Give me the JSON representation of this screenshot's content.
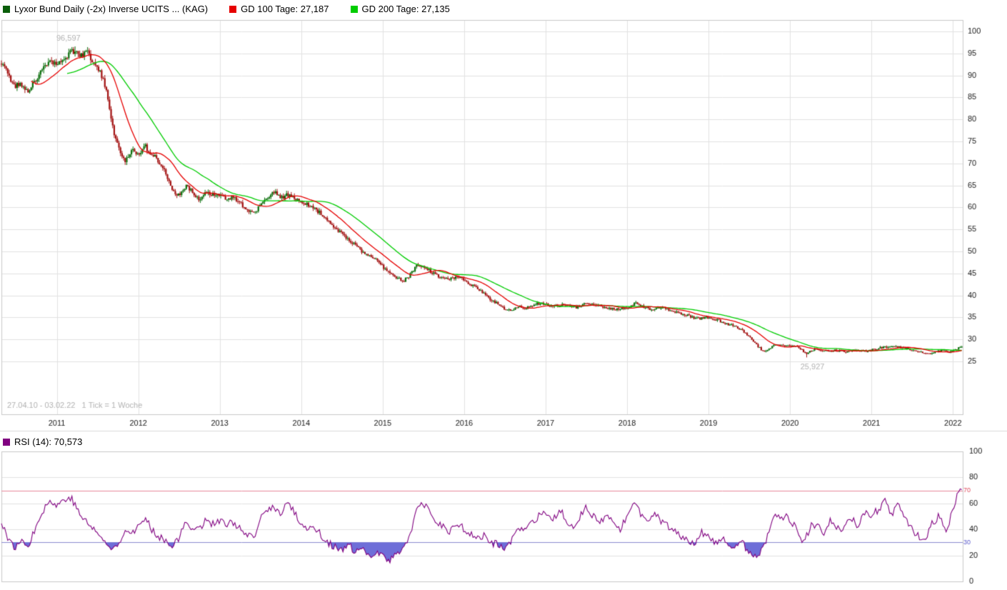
{
  "legend": {
    "title": "Lyxor Bund Daily (-2x) Inverse UCITS ... (KAG)",
    "title_color": "#0b5e0b",
    "gd100_label": "GD 100 Tage: 27,187",
    "gd100_color": "#e60000",
    "gd200_label": "GD 200 Tage: 27,135",
    "gd200_color": "#00cc00"
  },
  "rsi_legend": {
    "label": "RSI (14): 70,573",
    "color": "#800080"
  },
  "footer": {
    "date_range": "27.04.10 - 03.02.22",
    "tick_info": "1 Tick = 1 Woche"
  },
  "annotations": {
    "high_label": "96,597",
    "low_label": "25,927"
  },
  "chart_data": {
    "type": "candlestick",
    "title": "Lyxor Bund Daily (-2x) Inverse UCITS ... (KAG)",
    "x_start": 2010.32,
    "x_end": 2022.12,
    "ylim": [
      13,
      102.6
    ],
    "yticks": [
      25,
      30,
      35,
      40,
      45,
      50,
      55,
      60,
      65,
      70,
      75,
      80,
      85,
      90,
      95,
      100
    ],
    "xticks": [
      2011,
      2012,
      2013,
      2014,
      2015,
      2016,
      2017,
      2018,
      2019,
      2020,
      2021,
      2022
    ],
    "tick_interval": "1 Tick = 1 Woche",
    "high_point": [
      2011.23,
      96.597
    ],
    "low_point": [
      2020.205,
      25.927
    ],
    "up_color": "#0b6e0b",
    "down_color": "#a31111",
    "grid_color": "#e2e2e2",
    "border_color": "#c9c9c9",
    "label_color": "#1a1a1a",
    "muted_color": "#b3b3b3",
    "series": [
      {
        "name": "GD 100 Tage",
        "last_value": 27.187,
        "color": "#e60000",
        "window_weeks": 20
      },
      {
        "name": "GD 200 Tage",
        "last_value": 27.135,
        "color": "#00cc00",
        "window_weeks": 43
      }
    ],
    "close_anchors": [
      [
        2010.33,
        93.0
      ],
      [
        2010.4,
        90.5
      ],
      [
        2010.48,
        87.5
      ],
      [
        2010.55,
        88.5
      ],
      [
        2010.63,
        86.2
      ],
      [
        2010.7,
        88.0
      ],
      [
        2010.78,
        90.0
      ],
      [
        2010.85,
        92.0
      ],
      [
        2010.93,
        93.5
      ],
      [
        2011.0,
        92.5
      ],
      [
        2011.08,
        93.5
      ],
      [
        2011.15,
        95.0
      ],
      [
        2011.23,
        95.8
      ],
      [
        2011.3,
        94.5
      ],
      [
        2011.38,
        95.3
      ],
      [
        2011.45,
        93.0
      ],
      [
        2011.53,
        91.0
      ],
      [
        2011.6,
        87.0
      ],
      [
        2011.65,
        82.0
      ],
      [
        2011.7,
        77.0
      ],
      [
        2011.78,
        72.5
      ],
      [
        2011.85,
        70.5
      ],
      [
        2011.93,
        73.5
      ],
      [
        2012.0,
        72.0
      ],
      [
        2012.08,
        74.0
      ],
      [
        2012.15,
        72.0
      ],
      [
        2012.23,
        71.0
      ],
      [
        2012.3,
        69.0
      ],
      [
        2012.38,
        66.0
      ],
      [
        2012.45,
        62.5
      ],
      [
        2012.53,
        63.5
      ],
      [
        2012.6,
        65.0
      ],
      [
        2012.68,
        63.0
      ],
      [
        2012.75,
        62.0
      ],
      [
        2012.83,
        63.5
      ],
      [
        2012.92,
        63.0
      ],
      [
        2013.0,
        62.5
      ],
      [
        2013.08,
        62.0
      ],
      [
        2013.17,
        62.5
      ],
      [
        2013.25,
        61.0
      ],
      [
        2013.33,
        59.5
      ],
      [
        2013.42,
        58.5
      ],
      [
        2013.5,
        60.5
      ],
      [
        2013.58,
        62.0
      ],
      [
        2013.67,
        63.5
      ],
      [
        2013.75,
        62.0
      ],
      [
        2013.83,
        63.0
      ],
      [
        2013.92,
        62.0
      ],
      [
        2014.0,
        61.5
      ],
      [
        2014.08,
        60.5
      ],
      [
        2014.17,
        59.5
      ],
      [
        2014.25,
        58.5
      ],
      [
        2014.33,
        57.0
      ],
      [
        2014.42,
        55.5
      ],
      [
        2014.5,
        54.0
      ],
      [
        2014.58,
        52.5
      ],
      [
        2014.67,
        51.5
      ],
      [
        2014.75,
        50.0
      ],
      [
        2014.83,
        49.0
      ],
      [
        2014.92,
        48.0
      ],
      [
        2015.0,
        46.5
      ],
      [
        2015.08,
        45.0
      ],
      [
        2015.17,
        44.0
      ],
      [
        2015.25,
        43.2
      ],
      [
        2015.33,
        44.5
      ],
      [
        2015.42,
        47.0
      ],
      [
        2015.5,
        46.5
      ],
      [
        2015.58,
        45.5
      ],
      [
        2015.67,
        44.5
      ],
      [
        2015.75,
        44.0
      ],
      [
        2015.83,
        43.8
      ],
      [
        2015.92,
        44.2
      ],
      [
        2016.0,
        43.5
      ],
      [
        2016.08,
        42.5
      ],
      [
        2016.17,
        41.5
      ],
      [
        2016.25,
        40.5
      ],
      [
        2016.33,
        39.0
      ],
      [
        2016.42,
        38.0
      ],
      [
        2016.5,
        37.0
      ],
      [
        2016.58,
        36.8
      ],
      [
        2016.67,
        37.5
      ],
      [
        2016.75,
        37.0
      ],
      [
        2016.83,
        37.8
      ],
      [
        2016.92,
        38.2
      ],
      [
        2017.0,
        38.0
      ],
      [
        2017.13,
        37.6
      ],
      [
        2017.25,
        37.9
      ],
      [
        2017.38,
        37.3
      ],
      [
        2017.5,
        38.2
      ],
      [
        2017.63,
        37.6
      ],
      [
        2017.75,
        37.2
      ],
      [
        2017.88,
        36.8
      ],
      [
        2018.0,
        37.0
      ],
      [
        2018.1,
        38.2
      ],
      [
        2018.2,
        37.4
      ],
      [
        2018.3,
        36.9
      ],
      [
        2018.42,
        37.3
      ],
      [
        2018.5,
        36.8
      ],
      [
        2018.58,
        36.4
      ],
      [
        2018.67,
        35.8
      ],
      [
        2018.75,
        35.4
      ],
      [
        2018.83,
        34.9
      ],
      [
        2018.92,
        34.8
      ],
      [
        2019.0,
        35.0
      ],
      [
        2019.08,
        34.6
      ],
      [
        2019.17,
        34.0
      ],
      [
        2019.25,
        33.4
      ],
      [
        2019.33,
        33.0
      ],
      [
        2019.42,
        32.0
      ],
      [
        2019.5,
        30.5
      ],
      [
        2019.58,
        29.0
      ],
      [
        2019.67,
        27.3
      ],
      [
        2019.75,
        28.0
      ],
      [
        2019.83,
        28.8
      ],
      [
        2019.92,
        28.6
      ],
      [
        2020.0,
        28.8
      ],
      [
        2020.1,
        28.3
      ],
      [
        2020.2,
        26.8
      ],
      [
        2020.3,
        27.8
      ],
      [
        2020.42,
        27.3
      ],
      [
        2020.54,
        27.6
      ],
      [
        2020.67,
        27.2
      ],
      [
        2020.79,
        27.5
      ],
      [
        2020.92,
        27.3
      ],
      [
        2021.0,
        27.6
      ],
      [
        2021.13,
        28.2
      ],
      [
        2021.25,
        28.4
      ],
      [
        2021.38,
        28.2
      ],
      [
        2021.5,
        27.6
      ],
      [
        2021.63,
        27.0
      ],
      [
        2021.71,
        26.7
      ],
      [
        2021.79,
        27.3
      ],
      [
        2021.88,
        27.6
      ],
      [
        2021.96,
        27.1
      ],
      [
        2022.04,
        27.8
      ],
      [
        2022.1,
        28.5
      ]
    ],
    "rsi_panel": {
      "type": "line",
      "name": "RSI (14)",
      "last_value": 70.573,
      "ylim": [
        0,
        100
      ],
      "yticks": [
        0,
        20,
        40,
        60,
        80,
        100
      ],
      "upper_line": 70,
      "lower_line": 30,
      "line_color": "#800080",
      "fill_color": "#6e6ed8",
      "upper_color": "#e8889c",
      "lower_color": "#8b8bd0",
      "upper_label_color": "#e05060",
      "lower_label_color": "#5c5ccc",
      "anchors": [
        [
          2010.33,
          45
        ],
        [
          2010.42,
          30
        ],
        [
          2010.5,
          26
        ],
        [
          2010.58,
          32
        ],
        [
          2010.67,
          28
        ],
        [
          2010.75,
          45
        ],
        [
          2010.83,
          55
        ],
        [
          2010.92,
          62
        ],
        [
          2011.0,
          58
        ],
        [
          2011.08,
          63
        ],
        [
          2011.17,
          65
        ],
        [
          2011.25,
          55
        ],
        [
          2011.33,
          48
        ],
        [
          2011.42,
          42
        ],
        [
          2011.5,
          38
        ],
        [
          2011.58,
          30
        ],
        [
          2011.67,
          25
        ],
        [
          2011.75,
          28
        ],
        [
          2011.83,
          40
        ],
        [
          2011.92,
          38
        ],
        [
          2012.0,
          42
        ],
        [
          2012.08,
          48
        ],
        [
          2012.17,
          40
        ],
        [
          2012.25,
          35
        ],
        [
          2012.33,
          32
        ],
        [
          2012.42,
          28
        ],
        [
          2012.5,
          33
        ],
        [
          2012.58,
          45
        ],
        [
          2012.67,
          42
        ],
        [
          2012.75,
          40
        ],
        [
          2012.83,
          48
        ],
        [
          2012.92,
          44
        ],
        [
          2013.0,
          47
        ],
        [
          2013.08,
          43
        ],
        [
          2013.17,
          46
        ],
        [
          2013.25,
          40
        ],
        [
          2013.33,
          35
        ],
        [
          2013.42,
          33
        ],
        [
          2013.5,
          48
        ],
        [
          2013.58,
          55
        ],
        [
          2013.67,
          58
        ],
        [
          2013.75,
          50
        ],
        [
          2013.83,
          62
        ],
        [
          2013.92,
          52
        ],
        [
          2014.0,
          45
        ],
        [
          2014.08,
          40
        ],
        [
          2014.17,
          42
        ],
        [
          2014.25,
          35
        ],
        [
          2014.33,
          30
        ],
        [
          2014.42,
          26
        ],
        [
          2014.5,
          23
        ],
        [
          2014.58,
          28
        ],
        [
          2014.67,
          22
        ],
        [
          2014.75,
          25
        ],
        [
          2014.83,
          18
        ],
        [
          2014.92,
          24
        ],
        [
          2015.0,
          20
        ],
        [
          2015.08,
          15
        ],
        [
          2015.17,
          22
        ],
        [
          2015.25,
          26
        ],
        [
          2015.33,
          35
        ],
        [
          2015.42,
          55
        ],
        [
          2015.5,
          60
        ],
        [
          2015.58,
          52
        ],
        [
          2015.67,
          45
        ],
        [
          2015.75,
          42
        ],
        [
          2015.83,
          38
        ],
        [
          2015.92,
          45
        ],
        [
          2016.0,
          40
        ],
        [
          2016.08,
          36
        ],
        [
          2016.17,
          33
        ],
        [
          2016.25,
          35
        ],
        [
          2016.33,
          30
        ],
        [
          2016.42,
          28
        ],
        [
          2016.5,
          25
        ],
        [
          2016.58,
          32
        ],
        [
          2016.67,
          40
        ],
        [
          2016.75,
          38
        ],
        [
          2016.83,
          45
        ],
        [
          2016.92,
          50
        ],
        [
          2017.0,
          52
        ],
        [
          2017.08,
          45
        ],
        [
          2017.17,
          55
        ],
        [
          2017.25,
          48
        ],
        [
          2017.33,
          42
        ],
        [
          2017.42,
          50
        ],
        [
          2017.5,
          58
        ],
        [
          2017.58,
          50
        ],
        [
          2017.67,
          44
        ],
        [
          2017.75,
          52
        ],
        [
          2017.83,
          45
        ],
        [
          2017.92,
          40
        ],
        [
          2018.0,
          50
        ],
        [
          2018.08,
          64
        ],
        [
          2018.17,
          52
        ],
        [
          2018.25,
          45
        ],
        [
          2018.33,
          52
        ],
        [
          2018.42,
          46
        ],
        [
          2018.5,
          42
        ],
        [
          2018.58,
          38
        ],
        [
          2018.67,
          35
        ],
        [
          2018.75,
          32
        ],
        [
          2018.83,
          30
        ],
        [
          2018.92,
          38
        ],
        [
          2019.0,
          35
        ],
        [
          2019.08,
          28
        ],
        [
          2019.17,
          32
        ],
        [
          2019.25,
          28
        ],
        [
          2019.33,
          25
        ],
        [
          2019.42,
          30
        ],
        [
          2019.5,
          22
        ],
        [
          2019.58,
          18
        ],
        [
          2019.67,
          25
        ],
        [
          2019.75,
          40
        ],
        [
          2019.83,
          52
        ],
        [
          2019.92,
          50
        ],
        [
          2020.0,
          48
        ],
        [
          2020.08,
          40
        ],
        [
          2020.17,
          30
        ],
        [
          2020.25,
          42
        ],
        [
          2020.33,
          45
        ],
        [
          2020.42,
          38
        ],
        [
          2020.5,
          48
        ],
        [
          2020.58,
          40
        ],
        [
          2020.67,
          42
        ],
        [
          2020.75,
          50
        ],
        [
          2020.83,
          42
        ],
        [
          2020.92,
          52
        ],
        [
          2021.0,
          50
        ],
        [
          2021.08,
          55
        ],
        [
          2021.17,
          62
        ],
        [
          2021.25,
          52
        ],
        [
          2021.33,
          58
        ],
        [
          2021.42,
          48
        ],
        [
          2021.5,
          40
        ],
        [
          2021.58,
          35
        ],
        [
          2021.67,
          33
        ],
        [
          2021.75,
          45
        ],
        [
          2021.83,
          50
        ],
        [
          2021.92,
          38
        ],
        [
          2022.0,
          55
        ],
        [
          2022.08,
          70.573
        ]
      ]
    }
  }
}
